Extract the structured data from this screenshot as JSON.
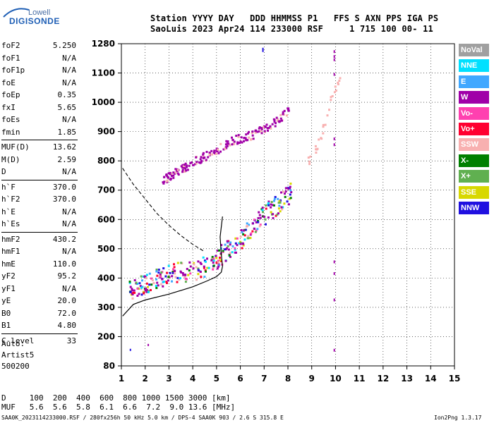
{
  "logo": {
    "top": "Lowell",
    "main": "DIGISONDE"
  },
  "header": {
    "line1": "Station YYYY DAY   DDD HHMMSS P1   FFS S AXN PPS IGA PS",
    "line2": "SaoLuis 2023 Apr24 114 233000 RSF     1 715 100 00- 11"
  },
  "params": {
    "group1": [
      {
        "k": "foF2",
        "v": "5.250"
      },
      {
        "k": "foF1",
        "v": "N/A"
      },
      {
        "k": "foF1p",
        "v": "N/A"
      },
      {
        "k": "foE",
        "v": "N/A"
      },
      {
        "k": "foEp",
        "v": "0.35"
      },
      {
        "k": "fxI",
        "v": "5.65"
      },
      {
        "k": "foEs",
        "v": "N/A"
      },
      {
        "k": "fmin",
        "v": "1.85"
      }
    ],
    "group2": [
      {
        "k": "MUF(D)",
        "v": "13.62"
      },
      {
        "k": "M(D)",
        "v": "2.59"
      },
      {
        "k": "D",
        "v": "N/A"
      }
    ],
    "group3": [
      {
        "k": "h`F",
        "v": "370.0"
      },
      {
        "k": "h`F2",
        "v": "370.0"
      },
      {
        "k": "h`E",
        "v": "N/A"
      },
      {
        "k": "h`Es",
        "v": "N/A"
      }
    ],
    "group4": [
      {
        "k": "hmF2",
        "v": "430.2"
      },
      {
        "k": "hmF1",
        "v": "N/A"
      },
      {
        "k": "hmE",
        "v": "110.0"
      },
      {
        "k": "yF2",
        "v": "95.2"
      },
      {
        "k": "yF1",
        "v": "N/A"
      },
      {
        "k": "yE",
        "v": "20.0"
      },
      {
        "k": "B0",
        "v": "72.0"
      },
      {
        "k": "B1",
        "v": "4.80"
      }
    ],
    "group5": [
      {
        "k": "C-level",
        "v": "33"
      }
    ]
  },
  "auto_block": {
    "l1": "Auto:",
    "l2": "Artist5",
    "l3": "500200"
  },
  "legend": [
    {
      "name": "NoVal",
      "color": "#a0a0a0"
    },
    {
      "name": "NNE",
      "color": "#00e0ff"
    },
    {
      "name": "E",
      "color": "#40a8ff"
    },
    {
      "name": "W",
      "color": "#a000a8"
    },
    {
      "name": "Vo-",
      "color": "#ff40b0"
    },
    {
      "name": "Vo+",
      "color": "#ff0030"
    },
    {
      "name": "SSW",
      "color": "#f8b0b0"
    },
    {
      "name": "X-",
      "color": "#008000"
    },
    {
      "name": "X+",
      "color": "#60b050"
    },
    {
      "name": "SSE",
      "color": "#d8d800"
    },
    {
      "name": "NNW",
      "color": "#2010e0"
    }
  ],
  "footer": {
    "line1": "D     100  200  400  600  800 1000 1500 3000 [km]",
    "line2": "MUF   5.6  5.6  5.8  6.1  6.6  7.2  9.0 13.6 [MHz]",
    "line3": "SAA0K_2023114233000.RSF / 280fx256h 50 kHz 5.0 km / DPS-4 SAA0K 903 / 2.6 S 315.8 E",
    "line4": "Ion2Png 1.3.17"
  },
  "chart_data": {
    "type": "scatter",
    "title": "",
    "xlabel": "",
    "ylabel": "",
    "x_ticks": [
      1,
      2,
      3,
      4,
      5,
      6,
      7,
      8,
      9,
      10,
      11,
      12,
      13,
      14,
      15
    ],
    "y_ticks": [
      80,
      200,
      300,
      400,
      500,
      600,
      700,
      800,
      900,
      1000,
      1100,
      1280
    ],
    "xlim": [
      1,
      15
    ],
    "ylim": [
      80,
      1280
    ],
    "grid": true,
    "series": [
      {
        "name": "trace_lower",
        "color": "#a000a8",
        "points": [
          [
            1.3,
            360
          ],
          [
            1.5,
            365
          ],
          [
            1.8,
            380
          ],
          [
            2.0,
            385
          ],
          [
            2.3,
            395
          ],
          [
            2.6,
            405
          ],
          [
            2.9,
            415
          ],
          [
            3.2,
            420
          ],
          [
            3.6,
            425
          ],
          [
            4.0,
            430
          ],
          [
            4.4,
            440
          ],
          [
            4.8,
            455
          ],
          [
            5.0,
            470
          ],
          [
            5.2,
            485
          ],
          [
            5.5,
            500
          ],
          [
            5.8,
            520
          ],
          [
            6.1,
            545
          ],
          [
            6.4,
            575
          ],
          [
            6.7,
            600
          ],
          [
            7.0,
            620
          ],
          [
            7.3,
            640
          ],
          [
            7.6,
            660
          ],
          [
            7.9,
            680
          ],
          [
            8.1,
            700
          ]
        ]
      },
      {
        "name": "trace_upper",
        "color": "#a000a8",
        "points": [
          [
            2.7,
            735
          ],
          [
            3.0,
            750
          ],
          [
            3.3,
            765
          ],
          [
            3.6,
            780
          ],
          [
            4.0,
            800
          ],
          [
            4.4,
            815
          ],
          [
            4.8,
            830
          ],
          [
            5.2,
            850
          ],
          [
            5.6,
            870
          ],
          [
            6.0,
            880
          ],
          [
            6.4,
            890
          ],
          [
            6.8,
            905
          ],
          [
            7.2,
            925
          ],
          [
            7.6,
            945
          ],
          [
            8.0,
            975
          ]
        ]
      },
      {
        "name": "trace_faint",
        "color": "#f8b0b0",
        "points": [
          [
            8.8,
            800
          ],
          [
            9.0,
            820
          ],
          [
            9.2,
            850
          ],
          [
            9.4,
            900
          ],
          [
            9.6,
            960
          ],
          [
            9.8,
            1020
          ],
          [
            10.0,
            1060
          ],
          [
            10.3,
            1090
          ]
        ]
      }
    ],
    "profile_solid": [
      [
        1.05,
        270
      ],
      [
        1.5,
        310
      ],
      [
        2.0,
        325
      ],
      [
        3.0,
        345
      ],
      [
        4.0,
        370
      ],
      [
        4.6,
        390
      ],
      [
        5.0,
        405
      ],
      [
        5.2,
        420
      ],
      [
        5.25,
        440
      ],
      [
        5.2,
        480
      ],
      [
        5.15,
        540
      ],
      [
        5.25,
        610
      ]
    ],
    "profile_dashed": [
      [
        1.05,
        775
      ],
      [
        1.5,
        720
      ],
      [
        2.0,
        670
      ],
      [
        2.5,
        620
      ],
      [
        3.0,
        580
      ],
      [
        3.5,
        545
      ],
      [
        4.0,
        515
      ],
      [
        4.5,
        490
      ]
    ]
  }
}
